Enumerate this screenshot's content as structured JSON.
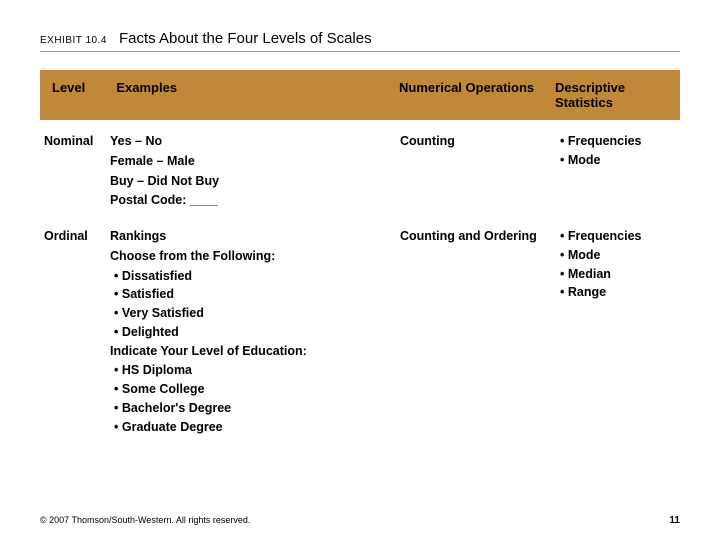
{
  "header": {
    "exhibit_label": "EXHIBIT 10.4",
    "title": "Facts About the Four Levels of Scales"
  },
  "table": {
    "header_bg": "#c08838",
    "columns": {
      "level": "Level",
      "examples": "Examples",
      "numops": "Numerical Operations",
      "stats": "Descriptive Statistics"
    },
    "rows": [
      {
        "level": "Nominal",
        "examples_lines": [
          "Yes – No",
          "Female – Male",
          "Buy – Did Not Buy",
          "Postal Code: ____"
        ],
        "examples_sections": [],
        "numops": "Counting",
        "stats": [
          "Frequencies",
          "Mode"
        ]
      },
      {
        "level": "Ordinal",
        "examples_lines": [
          "Rankings"
        ],
        "examples_sections": [
          {
            "heading": "Choose from the Following:",
            "items": [
              "Dissatisfied",
              "Satisfied",
              "Very Satisfied",
              "Delighted"
            ]
          },
          {
            "heading": "Indicate Your Level of Education:",
            "items": [
              "HS Diploma",
              "Some College",
              "Bachelor's Degree",
              "Graduate Degree"
            ]
          }
        ],
        "numops": "Counting and Ordering",
        "stats": [
          "Frequencies",
          "Mode",
          "Median",
          "Range"
        ]
      }
    ]
  },
  "footer": {
    "copyright": "© 2007 Thomson/South-Western. All rights reserved.",
    "page": "11"
  }
}
